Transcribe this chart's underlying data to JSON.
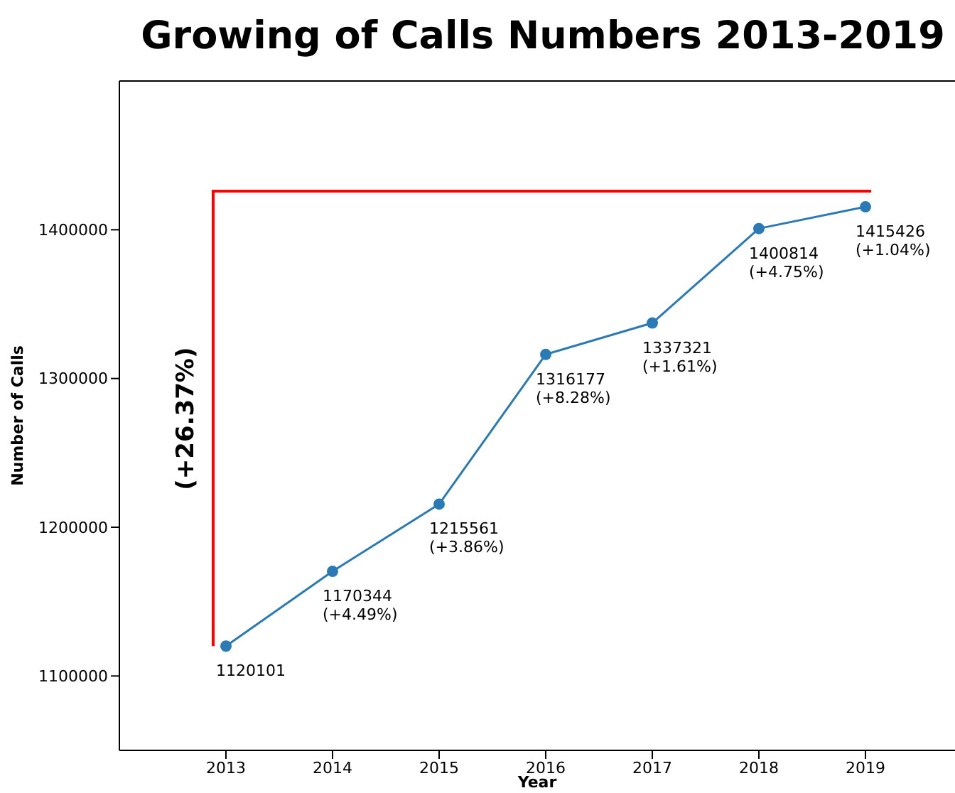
{
  "chart_data": {
    "type": "line",
    "title": "Growing of Calls Numbers 2013-2019",
    "xlabel": "Year",
    "ylabel": "Number of Calls",
    "x": [
      2013,
      2014,
      2015,
      2016,
      2017,
      2018,
      2019
    ],
    "series": [
      {
        "color": "#2a7ab5",
        "values": [
          1120101,
          1170344,
          1215561,
          1316177,
          1337321,
          1400814,
          1415426
        ],
        "value_labels": [
          "1120101",
          "1170344\n(+4.49%)",
          "1215561\n(+3.86%)",
          "1316177\n(+8.28%)",
          "1337321\n(+1.61%)",
          "1400814\n(+4.75%)",
          "1415426\n(+1.04%)"
        ]
      }
    ],
    "xlim": [
      2012,
      2019.84
    ],
    "xticks": [
      2013,
      2014,
      2015,
      2016,
      2017,
      2018,
      2019
    ],
    "ylim": [
      1050000,
      1500000
    ],
    "yticks": [
      1100000,
      1200000,
      1300000,
      1400000
    ],
    "annotations": [
      "(+26.37%)"
    ],
    "marker": "circle",
    "line_style": "solid"
  }
}
